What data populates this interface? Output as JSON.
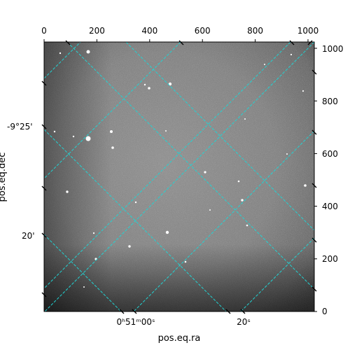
{
  "figure": {
    "top_axis_ticks": [
      "0",
      "200",
      "400",
      "600",
      "800",
      "1000"
    ],
    "right_axis_ticks": [
      "0",
      "200",
      "400",
      "600",
      "800",
      "1000"
    ],
    "left_axis_ticks": [
      "-9°25'",
      "20'"
    ],
    "bottom_axis_ticks": [
      "0ʰ51ᵐ00ˢ",
      "20ˢ"
    ],
    "bottom_axis_title": "pos.eq.ra",
    "left_axis_title": "pos.eq.dec",
    "grid_color": "#22d3d3",
    "pixel_range": [
      0,
      1024
    ]
  }
}
